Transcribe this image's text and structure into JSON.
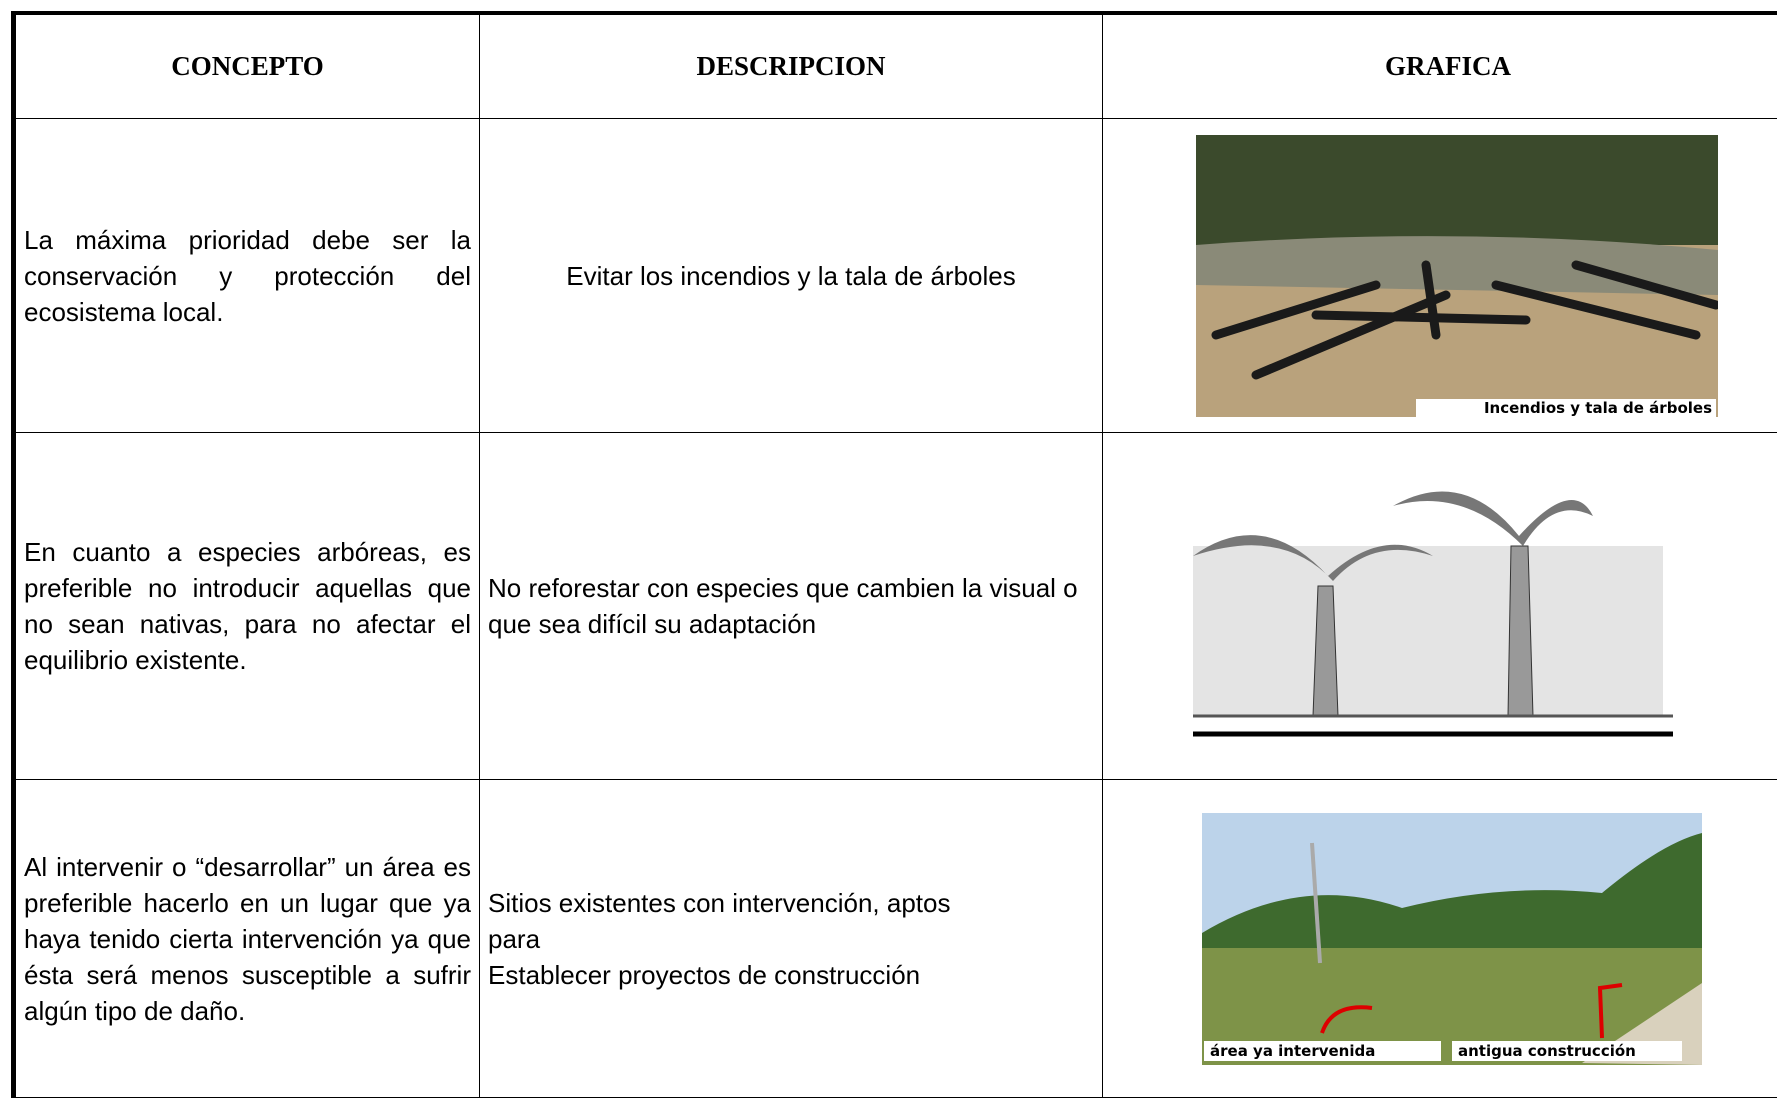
{
  "table": {
    "headers": [
      "CONCEPTO",
      "DESCRIPCION",
      "GRAFICA"
    ],
    "rows": [
      {
        "concept": "La máxima prioridad debe ser la conservación y protección del ecosistema local.",
        "description": [
          "Evitar los incendios y la tala de árboles"
        ],
        "captions": [
          "Incendios y tala de árboles"
        ]
      },
      {
        "concept": "En cuanto a especies arbóreas, es preferible no introducir aquellas que no sean nativas, para no afectar el equilibrio existente.",
        "description": [
          "No reforestar con especies que cambien la visual o que  sea difícil su adaptación"
        ],
        "captions": []
      },
      {
        "concept": "Al intervenir o “desarrollar” un área es preferible hacerlo en un lugar que ya haya tenido cierta intervención ya que ésta será menos susceptible a sufrir algún tipo de daño.",
        "description": [
          "Sitios existentes con intervención, aptos",
          "para",
          "Establecer proyectos de construcción"
        ],
        "captions": [
          "área ya intervenida",
          "antigua construcción"
        ]
      }
    ]
  }
}
